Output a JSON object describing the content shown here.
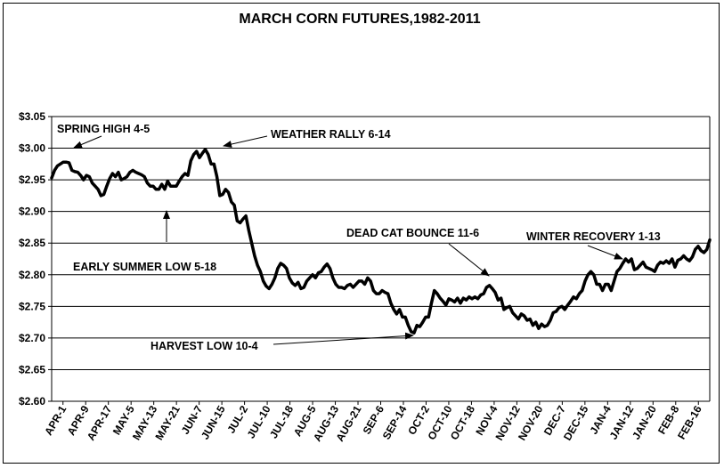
{
  "chart_data": {
    "type": "line",
    "title": "MARCH CORN FUTURES,1982-2011",
    "xlabel": "",
    "ylabel": "",
    "ylim": [
      2.6,
      3.05
    ],
    "y_ticks": [
      "$2.60",
      "$2.65",
      "$2.70",
      "$2.75",
      "$2.80",
      "$2.85",
      "$2.90",
      "$2.95",
      "$3.00",
      "$3.05"
    ],
    "y_tick_values": [
      2.6,
      2.65,
      2.7,
      2.75,
      2.8,
      2.85,
      2.9,
      2.95,
      3.0,
      3.05
    ],
    "grid": true,
    "legend": "none",
    "line_color": "#000000",
    "x_tick_labels": [
      "APR-1",
      "APR-9",
      "APR-17",
      "MAY-5",
      "MAY-13",
      "MAY-21",
      "JUN-7",
      "JUN-15",
      "JUL-2",
      "JUL-10",
      "JUL-18",
      "AUG-5",
      "AUG-13",
      "AUG-21",
      "SEP-6",
      "SEP-14",
      "OCT-2",
      "OCT-10",
      "OCT-18",
      "NOV-4",
      "NOV-12",
      "NOV-20",
      "DEC-7",
      "DEC-15",
      "JAN-4",
      "JAN-12",
      "JAN-20",
      "FEB-8",
      "FEB-16"
    ],
    "series": [
      {
        "values": [
          2.953,
          2.965,
          2.972,
          2.975,
          2.978,
          2.978,
          2.977,
          2.965,
          2.963,
          2.962,
          2.957,
          2.95,
          2.957,
          2.955,
          2.945,
          2.94,
          2.935,
          2.925,
          2.927,
          2.94,
          2.952,
          2.96,
          2.955,
          2.962,
          2.95,
          2.952,
          2.955,
          2.962,
          2.965,
          2.962,
          2.96,
          2.958,
          2.955,
          2.945,
          2.94,
          2.94,
          2.935,
          2.935,
          2.943,
          2.935,
          2.948,
          2.94,
          2.94,
          2.94,
          2.948,
          2.955,
          2.96,
          2.957,
          2.98,
          2.99,
          2.995,
          2.985,
          2.992,
          2.998,
          2.99,
          2.975,
          2.975,
          2.955,
          2.925,
          2.927,
          2.935,
          2.93,
          2.915,
          2.91,
          2.885,
          2.882,
          2.888,
          2.893,
          2.87,
          2.85,
          2.83,
          2.815,
          2.805,
          2.79,
          2.782,
          2.778,
          2.785,
          2.795,
          2.81,
          2.818,
          2.815,
          2.81,
          2.795,
          2.787,
          2.783,
          2.788,
          2.778,
          2.78,
          2.79,
          2.795,
          2.8,
          2.795,
          2.803,
          2.805,
          2.812,
          2.817,
          2.81,
          2.795,
          2.785,
          2.78,
          2.78,
          2.778,
          2.783,
          2.785,
          2.78,
          2.785,
          2.79,
          2.79,
          2.785,
          2.795,
          2.79,
          2.775,
          2.77,
          2.77,
          2.775,
          2.772,
          2.77,
          2.755,
          2.745,
          2.738,
          2.745,
          2.733,
          2.733,
          2.72,
          2.71,
          2.708,
          2.72,
          2.718,
          2.725,
          2.733,
          2.733,
          2.755,
          2.775,
          2.77,
          2.763,
          2.758,
          2.752,
          2.762,
          2.76,
          2.757,
          2.763,
          2.755,
          2.763,
          2.76,
          2.765,
          2.762,
          2.765,
          2.762,
          2.768,
          2.77,
          2.78,
          2.783,
          2.778,
          2.772,
          2.76,
          2.763,
          2.745,
          2.748,
          2.75,
          2.74,
          2.735,
          2.73,
          2.738,
          2.735,
          2.728,
          2.73,
          2.72,
          2.725,
          2.715,
          2.722,
          2.718,
          2.72,
          2.728,
          2.74,
          2.742,
          2.748,
          2.75,
          2.745,
          2.752,
          2.758,
          2.765,
          2.762,
          2.77,
          2.775,
          2.79,
          2.8,
          2.805,
          2.8,
          2.785,
          2.785,
          2.775,
          2.785,
          2.785,
          2.775,
          2.79,
          2.805,
          2.81,
          2.818,
          2.825,
          2.82,
          2.825,
          2.808,
          2.81,
          2.815,
          2.82,
          2.812,
          2.81,
          2.808,
          2.805,
          2.815,
          2.82,
          2.818,
          2.822,
          2.818,
          2.825,
          2.812,
          2.823,
          2.825,
          2.83,
          2.825,
          2.822,
          2.828,
          2.84,
          2.845,
          2.838,
          2.835,
          2.84,
          2.855
        ]
      }
    ],
    "annotations": [
      {
        "text": "SPRING HIGH 4-5"
      },
      {
        "text": "WEATHER RALLY 6-14"
      },
      {
        "text": "EARLY SUMMER LOW 5-18"
      },
      {
        "text": "DEAD CAT  BOUNCE  11-6"
      },
      {
        "text": "WINTER RECOVERY  1-13"
      },
      {
        "text": "HARVEST LOW  10-4"
      }
    ]
  }
}
